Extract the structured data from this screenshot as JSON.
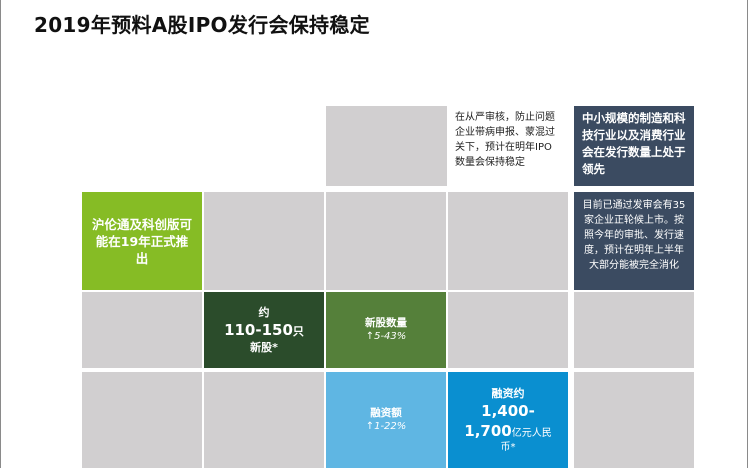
{
  "title": "2019年预料A股IPO发行会保持稳定",
  "notes": {
    "review": "在从严审核，防止问题企业带病申报、蒙混过关下，预计在明年IPO数量会保持稳定",
    "sme": "中小规模的制造和科技行业以及消费行业会在发行数量上处于领先",
    "pipeline": "目前已通过发审会有35家企业正轮候上市。按照今年的审批、发行速度，预计在明年上半年大部分能被完全消化",
    "hlt": "沪伦通及科创版可能在19年正式推出"
  },
  "tiles": {
    "new_shares": {
      "line1": "约",
      "line2": "110-150",
      "line2_unit": "只",
      "line3": "新股*"
    },
    "count": {
      "label": "新股数量",
      "change": "↑5-43%"
    },
    "amount": {
      "label": "融资额",
      "change": "↑1-22%"
    },
    "financing": {
      "line1": "融资约",
      "line2": "1,400-",
      "line3": "1,700",
      "line3_unit": "亿元人民",
      "line4": "币*"
    }
  }
}
